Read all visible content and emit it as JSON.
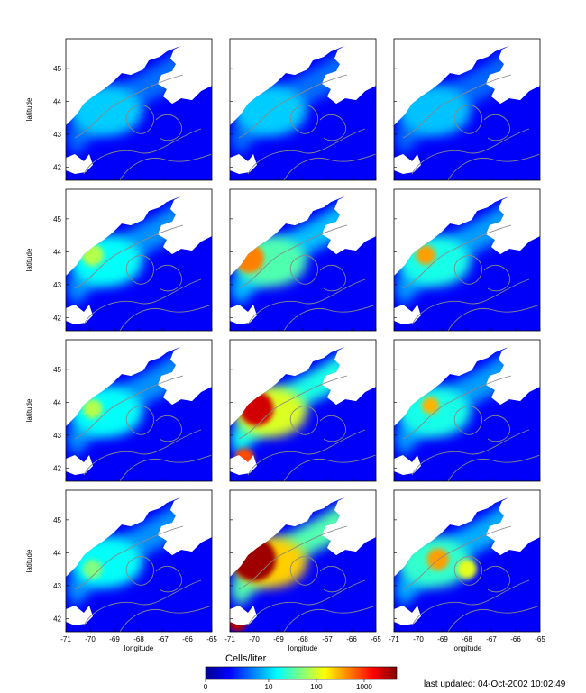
{
  "chart_data": {
    "type": "heatmap",
    "grid": {
      "rows": 4,
      "cols": 3
    },
    "xlabel": "longitude",
    "ylabel": "latitude",
    "xlim": [
      -71,
      -65
    ],
    "ylim": [
      41.6,
      45.9
    ],
    "x_ticks": [
      "-71",
      "-70",
      "-69",
      "-68",
      "-67",
      "-66",
      "-65"
    ],
    "y_ticks": [
      "42",
      "43",
      "44",
      "45"
    ],
    "panels": [
      {
        "row": 0,
        "col": 0,
        "intensity": 0.32,
        "hotspots": []
      },
      {
        "row": 0,
        "col": 1,
        "intensity": 0.32,
        "hotspots": []
      },
      {
        "row": 0,
        "col": 2,
        "intensity": 0.3,
        "hotspots": []
      },
      {
        "row": 1,
        "col": 0,
        "intensity": 0.42,
        "hotspots": [
          {
            "lon": -69.9,
            "lat": 43.9,
            "r": 0.45,
            "v": 0.55
          }
        ]
      },
      {
        "row": 1,
        "col": 1,
        "intensity": 0.55,
        "hotspots": [
          {
            "lon": -70.2,
            "lat": 43.8,
            "r": 0.6,
            "v": 0.75
          }
        ]
      },
      {
        "row": 1,
        "col": 2,
        "intensity": 0.45,
        "hotspots": [
          {
            "lon": -69.7,
            "lat": 43.9,
            "r": 0.4,
            "v": 0.72
          }
        ]
      },
      {
        "row": 2,
        "col": 0,
        "intensity": 0.42,
        "hotspots": [
          {
            "lon": -69.9,
            "lat": 43.8,
            "r": 0.4,
            "v": 0.55
          }
        ]
      },
      {
        "row": 2,
        "col": 1,
        "intensity": 0.8,
        "hotspots": [
          {
            "lon": -69.9,
            "lat": 43.8,
            "r": 0.7,
            "v": 0.92
          },
          {
            "lon": -70.4,
            "lat": 42.3,
            "r": 0.4,
            "v": 0.8
          }
        ]
      },
      {
        "row": 2,
        "col": 2,
        "intensity": 0.45,
        "hotspots": [
          {
            "lon": -69.5,
            "lat": 43.9,
            "r": 0.35,
            "v": 0.7
          }
        ]
      },
      {
        "row": 3,
        "col": 0,
        "intensity": 0.42,
        "hotspots": [
          {
            "lon": -69.9,
            "lat": 43.5,
            "r": 0.4,
            "v": 0.5
          }
        ]
      },
      {
        "row": 3,
        "col": 1,
        "intensity": 0.95,
        "hotspots": [
          {
            "lon": -70.0,
            "lat": 43.8,
            "r": 0.9,
            "v": 0.97
          },
          {
            "lon": -70.7,
            "lat": 41.9,
            "r": 0.4,
            "v": 0.95
          }
        ]
      },
      {
        "row": 3,
        "col": 2,
        "intensity": 0.5,
        "hotspots": [
          {
            "lon": -69.2,
            "lat": 43.8,
            "r": 0.45,
            "v": 0.72
          },
          {
            "lon": -68.0,
            "lat": 43.5,
            "r": 0.4,
            "v": 0.6
          }
        ]
      }
    ],
    "colorbar": {
      "title": "Cells/liter",
      "ticks": [
        "0",
        "10",
        "100",
        "1000"
      ],
      "colormap": "jet"
    }
  },
  "footer": {
    "last_updated": "last updated: 04-Oct-2002 10:02:49"
  }
}
